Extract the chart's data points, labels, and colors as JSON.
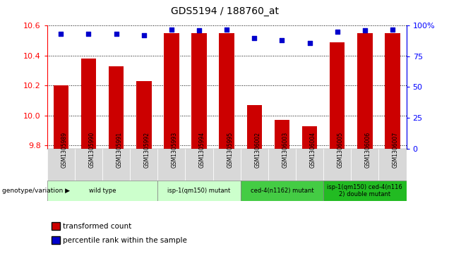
{
  "title": "GDS5194 / 188760_at",
  "samples": [
    "GSM1305989",
    "GSM1305990",
    "GSM1305991",
    "GSM1305992",
    "GSM1305993",
    "GSM1305994",
    "GSM1305995",
    "GSM1306002",
    "GSM1306003",
    "GSM1306004",
    "GSM1306005",
    "GSM1306006",
    "GSM1306007"
  ],
  "red_values": [
    10.2,
    10.38,
    10.33,
    10.23,
    10.55,
    10.55,
    10.55,
    10.07,
    9.97,
    9.93,
    10.49,
    10.55,
    10.55
  ],
  "blue_values": [
    93,
    93,
    93,
    92,
    97,
    96,
    97,
    90,
    88,
    86,
    95,
    96,
    97
  ],
  "ylim_left": [
    9.78,
    10.6
  ],
  "ylim_right": [
    0,
    100
  ],
  "yticks_left": [
    9.8,
    10.0,
    10.2,
    10.4,
    10.6
  ],
  "yticks_right": [
    0,
    25,
    50,
    75,
    100
  ],
  "ytick_labels_right": [
    "0",
    "25",
    "50",
    "75",
    "100%"
  ],
  "genotype_groups": [
    {
      "label": "wild type",
      "start": 0,
      "end": 3,
      "color": "#ccffcc"
    },
    {
      "label": "isp-1(qm150) mutant",
      "start": 4,
      "end": 6,
      "color": "#ccffcc"
    },
    {
      "label": "ced-4(n1162) mutant",
      "start": 7,
      "end": 9,
      "color": "#44cc44"
    },
    {
      "label": "isp-1(qm150) ced-4(n116\n2) double mutant",
      "start": 10,
      "end": 12,
      "color": "#22bb22"
    }
  ],
  "bar_color": "#cc0000",
  "dot_color": "#0000cc",
  "bg_color": "#ffffff",
  "grid_color": "#000000",
  "tick_bg_color": "#d8d8d8",
  "legend_red": "transformed count",
  "legend_blue": "percentile rank within the sample",
  "genotype_label": "genotype/variation"
}
